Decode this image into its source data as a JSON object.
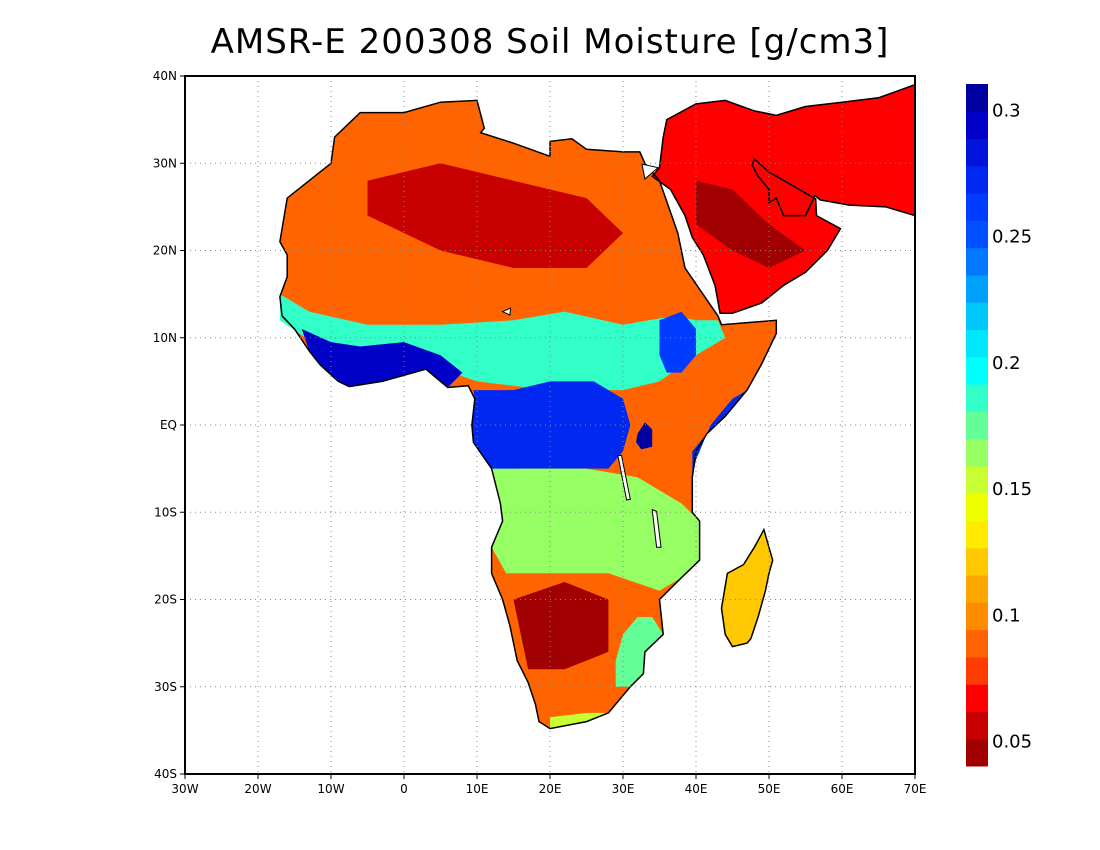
{
  "title": "AMSR-E 200308 Soil Moisture [g/cm3]",
  "map": {
    "lon_range": [
      -30,
      70
    ],
    "lat_range": [
      -40,
      40
    ],
    "grid": true,
    "x_ticks": [
      {
        "lon": -30,
        "label": "30W"
      },
      {
        "lon": -20,
        "label": "20W"
      },
      {
        "lon": -10,
        "label": "10W"
      },
      {
        "lon": 0,
        "label": "0"
      },
      {
        "lon": 10,
        "label": "10E"
      },
      {
        "lon": 20,
        "label": "20E"
      },
      {
        "lon": 30,
        "label": "30E"
      },
      {
        "lon": 40,
        "label": "40E"
      },
      {
        "lon": 50,
        "label": "50E"
      },
      {
        "lon": 60,
        "label": "60E"
      },
      {
        "lon": 70,
        "label": "70E"
      }
    ],
    "y_ticks": [
      {
        "lat": 40,
        "label": "40N"
      },
      {
        "lat": 30,
        "label": "30N"
      },
      {
        "lat": 20,
        "label": "20N"
      },
      {
        "lat": 10,
        "label": "10N"
      },
      {
        "lat": 0,
        "label": "EQ"
      },
      {
        "lat": -10,
        "label": "10S"
      },
      {
        "lat": -20,
        "label": "20S"
      },
      {
        "lat": -30,
        "label": "30S"
      },
      {
        "lat": -40,
        "label": "40S"
      }
    ],
    "regions": [
      {
        "name": "africa",
        "value": 0.09,
        "coords": [
          [
            -17,
            21
          ],
          [
            -16,
            26
          ],
          [
            -13,
            28
          ],
          [
            -10,
            30
          ],
          [
            -9.5,
            33
          ],
          [
            -6,
            35.8
          ],
          [
            0,
            35.8
          ],
          [
            5,
            37
          ],
          [
            10,
            37.2
          ],
          [
            11,
            34
          ],
          [
            10.5,
            33.5
          ],
          [
            15,
            32.3
          ],
          [
            20,
            30.8
          ],
          [
            20,
            32.5
          ],
          [
            23,
            32.8
          ],
          [
            25,
            31.6
          ],
          [
            30,
            31.3
          ],
          [
            32.3,
            31.3
          ],
          [
            33,
            30
          ],
          [
            35,
            28
          ],
          [
            37.5,
            22
          ],
          [
            38.5,
            18
          ],
          [
            43,
            12.5
          ],
          [
            43.5,
            11.5
          ],
          [
            51,
            12
          ],
          [
            51,
            10.5
          ],
          [
            49,
            7
          ],
          [
            47,
            4
          ],
          [
            44,
            1
          ],
          [
            41.5,
            -1
          ],
          [
            40,
            -3
          ],
          [
            39.5,
            -6
          ],
          [
            39.5,
            -10
          ],
          [
            40.5,
            -11
          ],
          [
            40.5,
            -15.5
          ],
          [
            38,
            -17.5
          ],
          [
            35,
            -20
          ],
          [
            35.5,
            -24
          ],
          [
            33,
            -26
          ],
          [
            32.8,
            -28.5
          ],
          [
            31,
            -30
          ],
          [
            28,
            -33
          ],
          [
            25,
            -34
          ],
          [
            20,
            -34.8
          ],
          [
            18.5,
            -34
          ],
          [
            18,
            -32
          ],
          [
            17,
            -29.5
          ],
          [
            15.5,
            -27
          ],
          [
            14.5,
            -23
          ],
          [
            13.5,
            -20
          ],
          [
            12,
            -17
          ],
          [
            12,
            -14
          ],
          [
            13.5,
            -11
          ],
          [
            13.2,
            -9
          ],
          [
            12.3,
            -6
          ],
          [
            12,
            -5
          ],
          [
            9.5,
            -2
          ],
          [
            9.3,
            0
          ],
          [
            9.7,
            3
          ],
          [
            8.8,
            4.5
          ],
          [
            6,
            4.3
          ],
          [
            3,
            6.4
          ],
          [
            0,
            5.7
          ],
          [
            -3,
            5
          ],
          [
            -7.5,
            4.4
          ],
          [
            -9,
            5
          ],
          [
            -11.5,
            6.9
          ],
          [
            -13,
            8.5
          ],
          [
            -15,
            11
          ],
          [
            -16.7,
            12.5
          ],
          [
            -17,
            14.7
          ],
          [
            -16,
            17
          ],
          [
            -16,
            19.5
          ],
          [
            -17,
            21
          ]
        ]
      },
      {
        "name": "arabia",
        "value": 0.07,
        "coords": [
          [
            34,
            28.5
          ],
          [
            35,
            29.5
          ],
          [
            35.5,
            33
          ],
          [
            36,
            35
          ],
          [
            40,
            36.8
          ],
          [
            44,
            37.2
          ],
          [
            48,
            36
          ],
          [
            51,
            35.5
          ],
          [
            55,
            36.5
          ],
          [
            60,
            37
          ],
          [
            65,
            37.5
          ],
          [
            70,
            39
          ],
          [
            70,
            24
          ],
          [
            66,
            25
          ],
          [
            61,
            25.2
          ],
          [
            57,
            25.8
          ],
          [
            56.3,
            26.3
          ],
          [
            55,
            24
          ],
          [
            52,
            24
          ],
          [
            51,
            26
          ],
          [
            50,
            25.5
          ],
          [
            50,
            27
          ],
          [
            48.5,
            28.5
          ],
          [
            47.7,
            29.8
          ],
          [
            48,
            30.5
          ],
          [
            50,
            29
          ],
          [
            56.4,
            25.9
          ],
          [
            56.5,
            24
          ],
          [
            59.8,
            22.5
          ],
          [
            58,
            20
          ],
          [
            55,
            17.5
          ],
          [
            52,
            16
          ],
          [
            49,
            14
          ],
          [
            45,
            12.8
          ],
          [
            43.3,
            12.8
          ],
          [
            42.6,
            16
          ],
          [
            41,
            19.5
          ],
          [
            39.5,
            21.5
          ],
          [
            38.5,
            24
          ],
          [
            36.5,
            27
          ],
          [
            34,
            28.5
          ]
        ]
      },
      {
        "name": "madagascar",
        "value": 0.12,
        "coords": [
          [
            49.3,
            -12
          ],
          [
            50.5,
            -15.5
          ],
          [
            50,
            -17
          ],
          [
            49.5,
            -19
          ],
          [
            48.5,
            -22
          ],
          [
            47.5,
            -24.5
          ],
          [
            47,
            -25
          ],
          [
            45,
            -25.4
          ],
          [
            44,
            -24
          ],
          [
            43.5,
            -21
          ],
          [
            44.3,
            -17
          ],
          [
            46.5,
            -16
          ],
          [
            48,
            -14
          ],
          [
            49.3,
            -12
          ]
        ]
      }
    ],
    "zones": [
      {
        "name": "sahel-band",
        "value": 0.19,
        "coords": [
          [
            -17,
            15
          ],
          [
            -13,
            13
          ],
          [
            -5,
            11.5
          ],
          [
            5,
            11.5
          ],
          [
            15,
            12
          ],
          [
            22,
            13
          ],
          [
            30,
            11.5
          ],
          [
            37,
            12.5
          ],
          [
            40,
            12
          ],
          [
            43,
            12
          ],
          [
            44,
            10
          ],
          [
            40,
            8
          ],
          [
            35,
            5
          ],
          [
            30,
            4
          ],
          [
            20,
            4
          ],
          [
            10,
            5
          ],
          [
            3,
            7
          ],
          [
            -3,
            7
          ],
          [
            -10,
            8
          ],
          [
            -17,
            12
          ]
        ]
      },
      {
        "name": "guinea-coast",
        "value": 0.29,
        "coords": [
          [
            -14,
            11
          ],
          [
            -10,
            9.5
          ],
          [
            -6,
            9
          ],
          [
            0,
            9.5
          ],
          [
            5,
            8
          ],
          [
            8,
            6
          ],
          [
            6,
            4.3
          ],
          [
            3,
            6.4
          ],
          [
            0,
            5.7
          ],
          [
            -3,
            5
          ],
          [
            -7.5,
            4.4
          ],
          [
            -9,
            5
          ],
          [
            -11.5,
            6.9
          ],
          [
            -13,
            8.5
          ]
        ]
      },
      {
        "name": "ethiopia-highland",
        "value": 0.26,
        "coords": [
          [
            35,
            12
          ],
          [
            38,
            13
          ],
          [
            40,
            11
          ],
          [
            40,
            8
          ],
          [
            38,
            6
          ],
          [
            36,
            6
          ],
          [
            35,
            8
          ]
        ]
      },
      {
        "name": "congo-basin",
        "value": 0.27,
        "coords": [
          [
            9.5,
            4
          ],
          [
            15,
            4
          ],
          [
            20,
            5
          ],
          [
            26,
            5
          ],
          [
            30,
            3
          ],
          [
            31,
            0
          ],
          [
            30,
            -3
          ],
          [
            28,
            -5
          ],
          [
            22,
            -5
          ],
          [
            16,
            -5
          ],
          [
            12.5,
            -6
          ],
          [
            12,
            -5
          ],
          [
            9.5,
            -2
          ],
          [
            9.3,
            0
          ],
          [
            9.7,
            3
          ]
        ]
      },
      {
        "name": "east-coast",
        "value": 0.27,
        "coords": [
          [
            41.5,
            -1
          ],
          [
            44,
            1
          ],
          [
            47,
            4
          ],
          [
            45,
            3
          ],
          [
            42,
            0
          ],
          [
            40,
            -4
          ],
          [
            39.5,
            -6
          ],
          [
            39.5,
            -3
          ]
        ]
      },
      {
        "name": "southern-savanna",
        "value": 0.16,
        "coords": [
          [
            12,
            -5
          ],
          [
            25,
            -5
          ],
          [
            32,
            -6
          ],
          [
            38,
            -9
          ],
          [
            40.5,
            -11
          ],
          [
            40.5,
            -15.5
          ],
          [
            38,
            -17.5
          ],
          [
            35,
            -19
          ],
          [
            28,
            -17
          ],
          [
            20,
            -17
          ],
          [
            14,
            -17
          ],
          [
            12,
            -14
          ],
          [
            13.5,
            -11
          ],
          [
            13.2,
            -9
          ],
          [
            12.3,
            -6
          ]
        ]
      },
      {
        "name": "lake-victoria",
        "value": 0.31,
        "coords": [
          [
            32,
            -1
          ],
          [
            33,
            0.3
          ],
          [
            34,
            -0.5
          ],
          [
            34,
            -2.5
          ],
          [
            32.5,
            -2.8
          ],
          [
            31.8,
            -2
          ]
        ]
      },
      {
        "name": "southeast-coast",
        "value": 0.18,
        "coords": [
          [
            30,
            -24
          ],
          [
            32,
            -22
          ],
          [
            34,
            -22
          ],
          [
            35.5,
            -24
          ],
          [
            33,
            -26
          ],
          [
            32.8,
            -28.5
          ],
          [
            31,
            -30
          ],
          [
            29,
            -30
          ],
          [
            29,
            -27
          ]
        ]
      },
      {
        "name": "kalahari",
        "value": 0.05,
        "coords": [
          [
            15,
            -20
          ],
          [
            22,
            -18
          ],
          [
            28,
            -20
          ],
          [
            28,
            -26
          ],
          [
            22,
            -28
          ],
          [
            17,
            -28
          ]
        ]
      },
      {
        "name": "sahara-core",
        "value": 0.06,
        "coords": [
          [
            -5,
            28
          ],
          [
            5,
            30
          ],
          [
            15,
            28
          ],
          [
            25,
            26
          ],
          [
            30,
            22
          ],
          [
            25,
            18
          ],
          [
            15,
            18
          ],
          [
            5,
            20
          ],
          [
            -5,
            24
          ]
        ]
      },
      {
        "name": "cape-coast",
        "value": 0.15,
        "coords": [
          [
            20,
            -34.8
          ],
          [
            25,
            -34
          ],
          [
            28,
            -33
          ],
          [
            25,
            -33
          ],
          [
            20,
            -33.5
          ]
        ]
      },
      {
        "name": "arabia-dry",
        "value": 0.05,
        "coords": [
          [
            40,
            28
          ],
          [
            45,
            27
          ],
          [
            50,
            23
          ],
          [
            55,
            20
          ],
          [
            50,
            18
          ],
          [
            45,
            20
          ],
          [
            40,
            23
          ]
        ]
      }
    ],
    "lakes": [
      {
        "name": "lake-chad",
        "coords": [
          [
            13.5,
            13
          ],
          [
            14.6,
            13.4
          ],
          [
            14.5,
            12.6
          ]
        ]
      },
      {
        "name": "lake-tanganyika",
        "coords": [
          [
            29.3,
            -3.5
          ],
          [
            29.8,
            -3.5
          ],
          [
            31,
            -8.5
          ],
          [
            30.5,
            -8.6
          ]
        ]
      },
      {
        "name": "lake-malawi",
        "coords": [
          [
            34,
            -9.7
          ],
          [
            34.6,
            -9.9
          ],
          [
            35.2,
            -14
          ],
          [
            34.6,
            -14
          ]
        ]
      },
      {
        "name": "red-sea-gulf",
        "coords": [
          [
            32.6,
            29.9
          ],
          [
            33,
            28.2
          ],
          [
            34.8,
            29.5
          ]
        ]
      }
    ]
  },
  "colorbar": {
    "colors": [
      "#a00000",
      "#c80000",
      "#ff0000",
      "#ff3c00",
      "#ff6400",
      "#ff8c00",
      "#ffa500",
      "#ffc800",
      "#ffeb00",
      "#f0ff00",
      "#c8ff32",
      "#96ff64",
      "#64ff96",
      "#32ffc8",
      "#00ffff",
      "#00e6ff",
      "#00c8ff",
      "#00a0ff",
      "#0078ff",
      "#0050ff",
      "#003cff",
      "#0028f0",
      "#0014dc",
      "#0000c8",
      "#0000a0"
    ],
    "ticks": [
      {
        "value": 0.05,
        "label": "0.05"
      },
      {
        "value": 0.1,
        "label": "0.1"
      },
      {
        "value": 0.15,
        "label": "0.15"
      },
      {
        "value": 0.2,
        "label": "0.2"
      },
      {
        "value": 0.25,
        "label": "0.25"
      },
      {
        "value": 0.3,
        "label": "0.3"
      }
    ],
    "range": [
      0.04,
      0.31
    ]
  }
}
